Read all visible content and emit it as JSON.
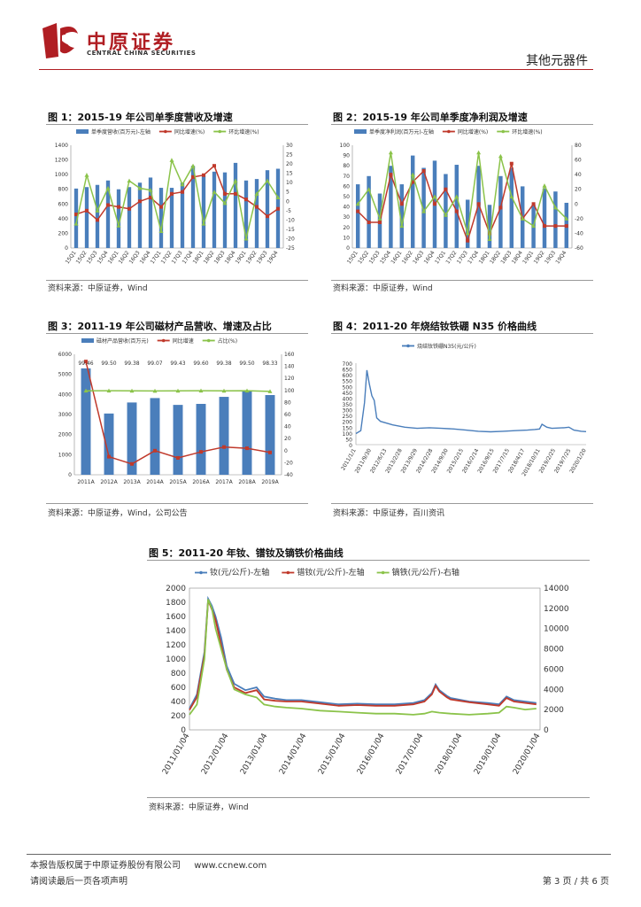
{
  "header": {
    "company_cn": "中原证券",
    "company_en": "CENTRAL CHINA SECURITIES",
    "section": "其他元器件",
    "logo_color": "#b01e23"
  },
  "figures": [
    {
      "caption": "图 1：2015-19 年公司单季度营收及增速",
      "source": "资料来源：中原证券，Wind"
    },
    {
      "caption": "图 2：2015-19 年公司单季度净利润及增速",
      "source": "资料来源：中原证券，Wind"
    },
    {
      "caption": "图 3：2011-19 年公司磁材产品营收、增速及占比",
      "source": "资料来源：中原证券，Wind，公司公告"
    },
    {
      "caption": "图 4：2011-20 年烧结钕铁硼 N35 价格曲线",
      "source": "资料来源：中原证券，百川资讯"
    },
    {
      "caption": "图 5：2011-20 年钕、镨钕及镝铁价格曲线",
      "source": "资料来源：中原证券，Wind"
    }
  ],
  "footer": {
    "left1": "本报告版权属于中原证券股份有限公司",
    "url": "www.ccnew.com",
    "left2": "请阅读最后一页各项声明",
    "page": "第 3 页 / 共 6 页"
  },
  "chart_data": [
    {
      "type": "bar",
      "categories": [
        "15Q1",
        "15Q2",
        "15Q3",
        "15Q4",
        "16Q1",
        "16Q2",
        "16Q3",
        "16Q4",
        "17Q1",
        "17Q2",
        "17Q3",
        "17Q4",
        "18Q1",
        "18Q2",
        "18Q3",
        "18Q4",
        "19Q1",
        "19Q2",
        "19Q3",
        "19Q4"
      ],
      "ylim": [
        0,
        1400
      ],
      "y2lim": [
        -25,
        30
      ],
      "legend_position": "top",
      "series": [
        {
          "name": "单季度营收(百万元)-左轴",
          "type": "bar",
          "axis": "left",
          "color": "#4a7ebb",
          "values": [
            810,
            830,
            860,
            920,
            800,
            830,
            890,
            960,
            820,
            820,
            890,
            1120,
            990,
            1040,
            1030,
            1160,
            920,
            940,
            1060,
            1080
          ]
        },
        {
          "name": "同比增速(%)",
          "type": "line",
          "axis": "right",
          "color": "#c0392b",
          "values": [
            -7,
            -5,
            -10,
            -2,
            -3,
            -4,
            0,
            2,
            -3,
            4,
            5,
            13,
            14,
            19,
            4,
            4,
            1,
            -3,
            -8,
            -4
          ]
        },
        {
          "name": "环比增速(%)",
          "type": "line",
          "axis": "right",
          "color": "#8bc34a",
          "values": [
            -12,
            14,
            -5,
            7,
            -13,
            11,
            7,
            6,
            -16,
            22,
            9,
            19,
            -12,
            5,
            -1,
            11,
            -20,
            4,
            11,
            2
          ]
        }
      ]
    },
    {
      "type": "bar",
      "categories": [
        "15Q1",
        "15Q2",
        "15Q3",
        "15Q4",
        "16Q1",
        "16Q2",
        "16Q3",
        "16Q4",
        "17Q1",
        "17Q2",
        "17Q3",
        "17Q4",
        "18Q1",
        "18Q2",
        "18Q3",
        "18Q4",
        "19Q1",
        "19Q2",
        "19Q3",
        "19Q4"
      ],
      "ylim": [
        0,
        100
      ],
      "y2lim": [
        -60,
        80
      ],
      "legend_position": "top",
      "series": [
        {
          "name": "单季度净利润(百万元)-左轴",
          "type": "bar",
          "axis": "left",
          "color": "#4a7ebb",
          "values": [
            62,
            70,
            53,
            80,
            62,
            90,
            78,
            85,
            72,
            81,
            47,
            80,
            42,
            70,
            78,
            60,
            42,
            58,
            55,
            44
          ]
        },
        {
          "name": "同比增速(%)",
          "type": "line",
          "axis": "right",
          "color": "#c0392b",
          "values": [
            -10,
            -25,
            -25,
            40,
            0,
            30,
            45,
            0,
            20,
            -10,
            -50,
            0,
            -40,
            -5,
            55,
            -20,
            0,
            -30,
            -30,
            -30
          ]
        },
        {
          "name": "环比增速(%)",
          "type": "line",
          "axis": "right",
          "color": "#8bc34a",
          "values": [
            0,
            20,
            -20,
            70,
            -30,
            40,
            -10,
            10,
            -15,
            10,
            -40,
            70,
            -48,
            65,
            10,
            -20,
            -30,
            25,
            -5,
            -20
          ]
        }
      ]
    },
    {
      "type": "bar",
      "categories": [
        "2011A",
        "2012A",
        "2013A",
        "2014A",
        "2015A",
        "2016A",
        "2017A",
        "2018A",
        "2019A"
      ],
      "ylim": [
        0,
        6000
      ],
      "y2lim": [
        -40,
        160
      ],
      "legend_position": "top",
      "data_labels": [
        "99.46",
        "99.50",
        "99.38",
        "99.07",
        "99.43",
        "99.60",
        "99.38",
        "99.50",
        "98.33"
      ],
      "series": [
        {
          "name": "磁材产品营收(百万元)",
          "type": "bar",
          "axis": "left",
          "color": "#4a7ebb",
          "values": [
            5300,
            3050,
            3600,
            3820,
            3480,
            3530,
            3880,
            4200,
            3970
          ]
        },
        {
          "name": "同比增速",
          "type": "line",
          "axis": "right",
          "color": "#c0392b",
          "values": [
            148,
            -10,
            -22,
            0,
            -12,
            -2,
            6,
            4,
            -3
          ]
        },
        {
          "name": "占比(%)",
          "type": "line",
          "axis": "right",
          "color": "#8bc34a",
          "values": [
            99.46,
            99.5,
            99.38,
            99.07,
            99.43,
            99.6,
            99.38,
            99.5,
            98.33
          ]
        }
      ]
    },
    {
      "type": "line",
      "ylim": [
        0,
        700
      ],
      "xlabels": [
        "2011/1/1",
        "2011/9/30",
        "2012/6/13",
        "2013/2/28",
        "2013/9/29",
        "2014/2/28",
        "2014/9/30",
        "2015/2/15",
        "2016/2/14",
        "2016/9/15",
        "2017/7/15",
        "2018/4/17",
        "2018/10/31",
        "2019/2/25",
        "2019/7/25",
        "2020/1/20"
      ],
      "legend_position": "top",
      "series": [
        {
          "name": "烧结钕铁硼N35(元/公斤)",
          "color": "#4a7ebb",
          "x": [
            2011.0,
            2011.2,
            2011.35,
            2011.45,
            2011.55,
            2011.65,
            2011.75,
            2011.85,
            2012.0,
            2012.5,
            2013.0,
            2013.5,
            2014.0,
            2014.5,
            2015.0,
            2015.5,
            2016.0,
            2016.5,
            2017.0,
            2017.5,
            2018.0,
            2018.3,
            2018.5,
            2018.6,
            2018.8,
            2019.0,
            2019.5,
            2019.7,
            2019.9,
            2020.2,
            2020.4
          ],
          "y": [
            95,
            120,
            360,
            640,
            520,
            420,
            380,
            230,
            200,
            170,
            150,
            140,
            145,
            140,
            135,
            125,
            115,
            110,
            115,
            120,
            125,
            130,
            135,
            175,
            150,
            140,
            145,
            150,
            125,
            115,
            112
          ]
        }
      ]
    },
    {
      "type": "line",
      "ylim": [
        0,
        2000
      ],
      "y2lim": [
        0,
        14000
      ],
      "xlabels": [
        "2011/01/04",
        "2012/01/04",
        "2013/01/04",
        "2014/01/04",
        "2015/01/04",
        "2016/01/04",
        "2017/01/04",
        "2018/01/04",
        "2019/01/04",
        "2020/01/04"
      ],
      "legend_position": "top",
      "series": [
        {
          "name": "钕(元/公斤)-左轴",
          "axis": "left",
          "color": "#4a7ebb",
          "x": [
            2011.0,
            2011.2,
            2011.4,
            2011.5,
            2011.6,
            2011.7,
            2011.85,
            2012.0,
            2012.2,
            2012.5,
            2012.8,
            2013.0,
            2013.3,
            2013.6,
            2014.0,
            2014.5,
            2015.0,
            2015.5,
            2016.0,
            2016.5,
            2017.0,
            2017.3,
            2017.5,
            2017.6,
            2017.7,
            2017.9,
            2018.0,
            2018.5,
            2019.0,
            2019.3,
            2019.5,
            2019.7,
            2020.0,
            2020.3
          ],
          "y": [
            300,
            500,
            1100,
            1850,
            1750,
            1600,
            1300,
            900,
            650,
            560,
            600,
            470,
            440,
            420,
            420,
            390,
            360,
            370,
            360,
            360,
            380,
            420,
            520,
            640,
            560,
            480,
            450,
            400,
            380,
            360,
            470,
            420,
            400,
            380
          ]
        },
        {
          "name": "镨钕(元/公斤)-左轴",
          "axis": "left",
          "color": "#c0392b",
          "x": [
            2011.0,
            2011.2,
            2011.4,
            2011.5,
            2011.6,
            2011.7,
            2011.85,
            2012.0,
            2012.2,
            2012.5,
            2012.8,
            2013.0,
            2013.3,
            2013.6,
            2014.0,
            2014.5,
            2015.0,
            2015.5,
            2016.0,
            2016.5,
            2017.0,
            2017.3,
            2017.5,
            2017.6,
            2017.7,
            2017.9,
            2018.0,
            2018.5,
            2019.0,
            2019.3,
            2019.5,
            2019.7,
            2020.0,
            2020.3
          ],
          "y": [
            280,
            460,
            1050,
            1830,
            1700,
            1550,
            1200,
            850,
            600,
            520,
            560,
            430,
            410,
            400,
            400,
            370,
            340,
            350,
            340,
            340,
            360,
            400,
            500,
            620,
            540,
            460,
            430,
            390,
            360,
            340,
            450,
            400,
            380,
            360
          ]
        },
        {
          "name": "镝铁(元/公斤)-右轴",
          "axis": "right",
          "color": "#8bc34a",
          "x": [
            2011.0,
            2011.2,
            2011.4,
            2011.5,
            2011.6,
            2011.7,
            2011.85,
            2012.0,
            2012.2,
            2012.5,
            2012.8,
            2013.0,
            2013.3,
            2013.6,
            2014.0,
            2014.5,
            2015.0,
            2015.5,
            2016.0,
            2016.5,
            2017.0,
            2017.3,
            2017.5,
            2017.7,
            2018.0,
            2018.5,
            2019.0,
            2019.3,
            2019.5,
            2019.7,
            2020.0,
            2020.3
          ],
          "y": [
            1500,
            2500,
            7000,
            12900,
            12000,
            10000,
            8000,
            6000,
            4000,
            3500,
            3200,
            2500,
            2300,
            2200,
            2100,
            1900,
            1800,
            1700,
            1600,
            1600,
            1500,
            1600,
            1800,
            1700,
            1600,
            1500,
            1600,
            1700,
            2300,
            2200,
            2000,
            2100
          ]
        }
      ]
    }
  ]
}
